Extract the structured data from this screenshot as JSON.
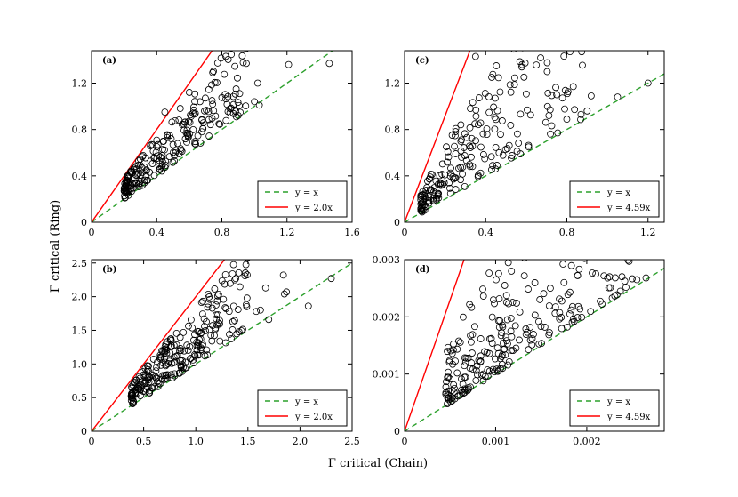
{
  "xlabel": "Γ critical (Chain)",
  "ylabel": "Γ critical (Ring)",
  "chart_data": [
    {
      "type": "scatter",
      "panel": "(a)",
      "xlim": [
        0,
        1.6
      ],
      "ylim": [
        0,
        1.48
      ],
      "xticks": [
        0,
        0.4,
        0.8,
        1.2,
        1.6
      ],
      "xtick_labels": [
        "0",
        "0.4",
        "0.8",
        "1.2",
        "1.6"
      ],
      "yticks": [
        0,
        0.4,
        0.8,
        1.2
      ],
      "ytick_labels": [
        "0",
        "0.4",
        "0.8",
        "1.2"
      ],
      "legend_position": "bottom-right",
      "lines": [
        {
          "label": "y = x",
          "slope": 1.0,
          "color": "#2ca02c",
          "style": "dashed"
        },
        {
          "label": "y = 2.0x",
          "slope": 2.0,
          "color": "#ff0000",
          "style": "solid"
        }
      ],
      "cluster": {
        "x_min": 0.2,
        "x_max": 0.95,
        "count": 240
      },
      "points": [
        {
          "x": 0.95,
          "y": 1.37
        },
        {
          "x": 1.21,
          "y": 1.36
        },
        {
          "x": 1.46,
          "y": 1.37
        },
        {
          "x": 1.02,
          "y": 1.2
        },
        {
          "x": 1.0,
          "y": 1.04
        },
        {
          "x": 1.03,
          "y": 1.01
        },
        {
          "x": 0.6,
          "y": 1.12
        },
        {
          "x": 0.74,
          "y": 1.05
        },
        {
          "x": 0.85,
          "y": 0.98
        },
        {
          "x": 0.9,
          "y": 0.92
        },
        {
          "x": 0.45,
          "y": 0.95
        }
      ]
    },
    {
      "type": "scatter",
      "panel": "(b)",
      "xlim": [
        0,
        2.5
      ],
      "ylim": [
        0,
        2.55
      ],
      "xticks": [
        0,
        0.5,
        1.0,
        1.5,
        2.0,
        2.5
      ],
      "xtick_labels": [
        "0",
        "0.5",
        "1.0",
        "1.5",
        "2.0",
        "2.5"
      ],
      "yticks": [
        0,
        0.5,
        1.0,
        1.5,
        2.0,
        2.5
      ],
      "ytick_labels": [
        "0",
        "0.5",
        "1.0",
        "1.5",
        "2.0",
        "2.5"
      ],
      "legend_position": "bottom-right",
      "lines": [
        {
          "label": "y = x",
          "slope": 1.0,
          "color": "#2ca02c",
          "style": "dashed"
        },
        {
          "label": "y = 2.0x",
          "slope": 2.0,
          "color": "#ff0000",
          "style": "solid"
        }
      ],
      "cluster": {
        "x_min": 0.38,
        "x_max": 1.5,
        "count": 260
      },
      "points": [
        {
          "x": 1.84,
          "y": 2.32
        },
        {
          "x": 2.3,
          "y": 2.27
        },
        {
          "x": 1.87,
          "y": 2.07
        },
        {
          "x": 1.85,
          "y": 2.04
        },
        {
          "x": 1.67,
          "y": 2.13
        },
        {
          "x": 2.08,
          "y": 1.86
        },
        {
          "x": 1.7,
          "y": 1.66
        },
        {
          "x": 1.58,
          "y": 1.78
        },
        {
          "x": 1.62,
          "y": 1.8
        }
      ]
    },
    {
      "type": "scatter",
      "panel": "(c)",
      "xlim": [
        0,
        1.28
      ],
      "ylim": [
        0,
        1.48
      ],
      "xticks": [
        0,
        0.4,
        0.8,
        1.2
      ],
      "xtick_labels": [
        "0",
        "0.4",
        "0.8",
        "1.2"
      ],
      "yticks": [
        0,
        0.4,
        0.8,
        1.2
      ],
      "ytick_labels": [
        "0",
        "0.4",
        "0.8",
        "1.2"
      ],
      "legend_position": "bottom-right",
      "lines": [
        {
          "label": "y = x",
          "slope": 1.0,
          "color": "#2ca02c",
          "style": "dashed"
        },
        {
          "label": "y = 4.59x",
          "slope": 4.59,
          "color": "#ff0000",
          "style": "solid"
        }
      ],
      "cluster": {
        "x_min": 0.08,
        "x_max": 0.9,
        "count": 250
      },
      "points": [
        {
          "x": 0.35,
          "y": 1.43
        },
        {
          "x": 0.58,
          "y": 1.36
        },
        {
          "x": 0.43,
          "y": 1.25
        },
        {
          "x": 1.2,
          "y": 1.2
        },
        {
          "x": 1.05,
          "y": 1.08
        },
        {
          "x": 0.92,
          "y": 1.09
        },
        {
          "x": 0.75,
          "y": 1.1
        },
        {
          "x": 0.9,
          "y": 0.96
        },
        {
          "x": 0.87,
          "y": 0.93
        }
      ]
    },
    {
      "type": "scatter",
      "panel": "(d)",
      "xlim": [
        0,
        0.00285
      ],
      "ylim": [
        0,
        0.003
      ],
      "xticks": [
        0,
        0.001,
        0.002
      ],
      "xtick_labels": [
        "0",
        "0.001",
        "0.002"
      ],
      "yticks": [
        0,
        0.001,
        0.002,
        0.003
      ],
      "ytick_labels": [
        "0",
        "0.001",
        "0.002",
        "0.003"
      ],
      "legend_position": "bottom-right",
      "lines": [
        {
          "label": "y = x",
          "slope": 1.0,
          "color": "#2ca02c",
          "style": "dashed"
        },
        {
          "label": "y = 4.59x",
          "slope": 4.59,
          "color": "#ff0000",
          "style": "solid"
        }
      ],
      "cluster": {
        "x_min": 0.00045,
        "x_max": 0.0025,
        "count": 300
      },
      "points": [
        {
          "x": 0.0021,
          "y": 0.00275
        },
        {
          "x": 0.00225,
          "y": 0.0027
        },
        {
          "x": 0.0019,
          "y": 0.00272
        },
        {
          "x": 0.00175,
          "y": 0.0026
        },
        {
          "x": 0.00255,
          "y": 0.00265
        },
        {
          "x": 0.00265,
          "y": 0.00268
        },
        {
          "x": 0.0011,
          "y": 0.00255
        },
        {
          "x": 0.0016,
          "y": 0.0025
        }
      ]
    }
  ]
}
